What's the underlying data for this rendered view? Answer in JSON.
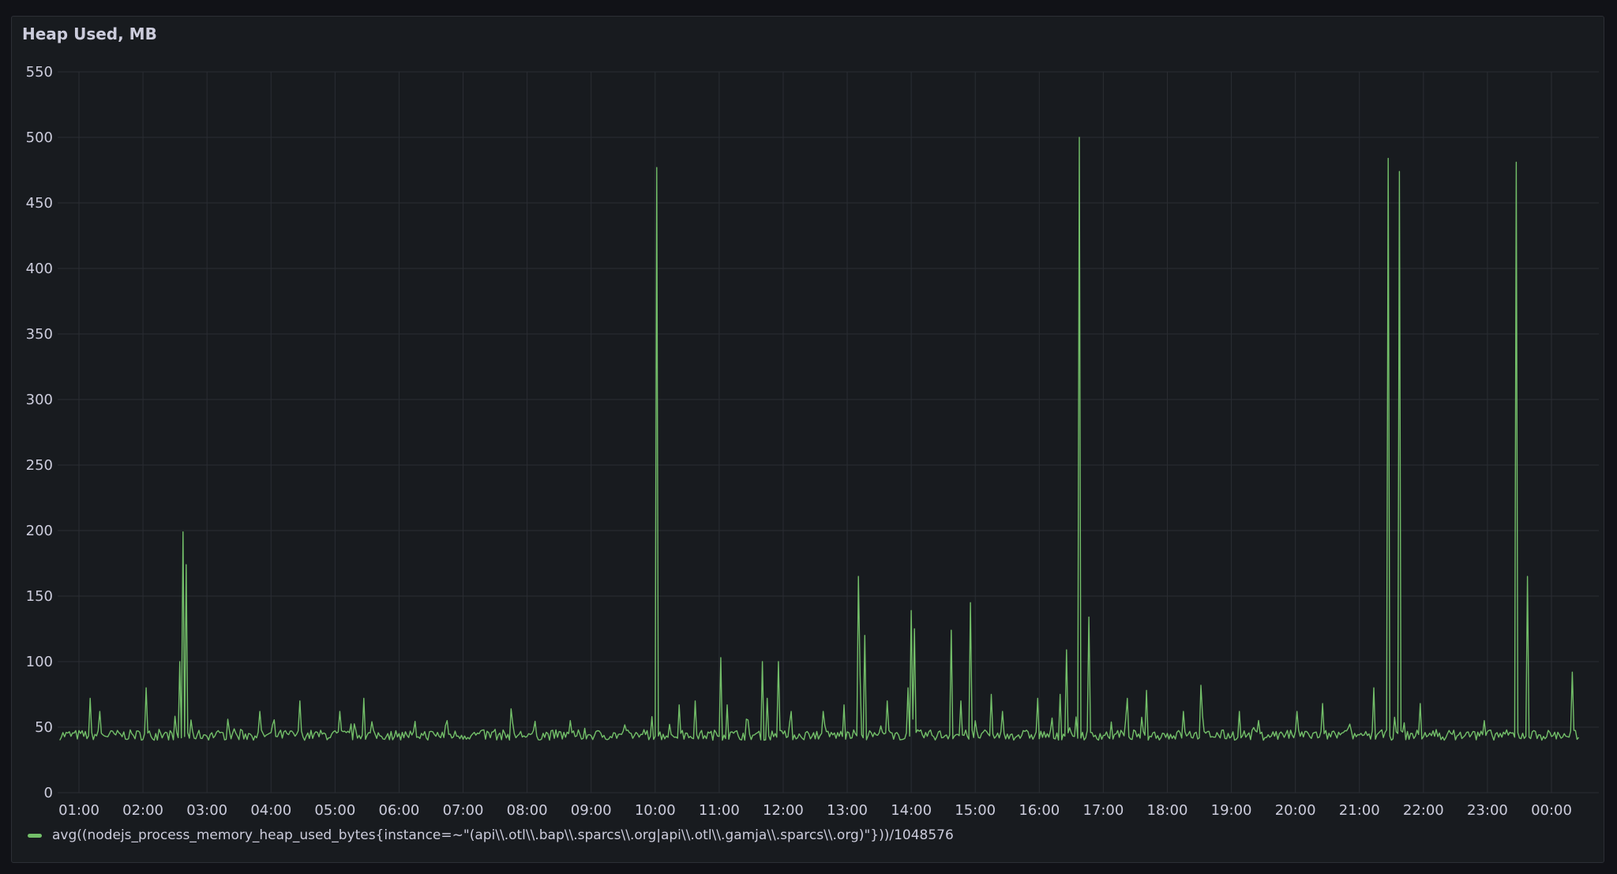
{
  "panel": {
    "title": "Heap Used, MB"
  },
  "legend": {
    "label": "avg((nodejs_process_memory_heap_used_bytes{instance=~\"(api\\\\.otl\\\\.bap\\\\.sparcs\\\\.org|api\\\\.otl\\\\.gamja\\\\.sparcs\\\\.org)\"}))/1048576",
    "color": "#73bf69"
  },
  "chart_data": {
    "type": "line",
    "title": "Heap Used, MB",
    "xlabel": "",
    "ylabel": "",
    "ylim": [
      0,
      550
    ],
    "xlim": [
      "00:40",
      "00:40 (+1d)"
    ],
    "grid": true,
    "legend_position": "bottom-left",
    "y_ticks": [
      0,
      50,
      100,
      150,
      200,
      250,
      300,
      350,
      400,
      450,
      500,
      550
    ],
    "x_ticks": [
      "01:00",
      "02:00",
      "03:00",
      "04:00",
      "05:00",
      "06:00",
      "07:00",
      "08:00",
      "09:00",
      "10:00",
      "11:00",
      "12:00",
      "13:00",
      "14:00",
      "15:00",
      "16:00",
      "17:00",
      "18:00",
      "19:00",
      "20:00",
      "21:00",
      "22:00",
      "23:00",
      "00:00"
    ],
    "baseline_mb": 44,
    "series": [
      {
        "name": "avg((nodejs_process_memory_heap_used_bytes{instance=~\"(api\\\\.otl\\\\.bap\\\\.sparcs\\\\.org|api\\\\.otl\\\\.gamja\\\\.sparcs\\\\.org)\"}))/1048576",
        "color": "#73bf69",
        "spikes": [
          {
            "time": "01:10",
            "value": 72
          },
          {
            "time": "01:20",
            "value": 62
          },
          {
            "time": "02:03",
            "value": 80
          },
          {
            "time": "02:35",
            "value": 100
          },
          {
            "time": "02:37",
            "value": 199
          },
          {
            "time": "02:40",
            "value": 174
          },
          {
            "time": "03:20",
            "value": 56
          },
          {
            "time": "03:50",
            "value": 62
          },
          {
            "time": "04:27",
            "value": 70
          },
          {
            "time": "05:05",
            "value": 62
          },
          {
            "time": "05:27",
            "value": 72
          },
          {
            "time": "06:45",
            "value": 55
          },
          {
            "time": "07:45",
            "value": 64
          },
          {
            "time": "08:40",
            "value": 55
          },
          {
            "time": "09:57",
            "value": 58
          },
          {
            "time": "10:02",
            "value": 477
          },
          {
            "time": "10:22",
            "value": 67
          },
          {
            "time": "10:37",
            "value": 70
          },
          {
            "time": "11:02",
            "value": 103
          },
          {
            "time": "11:08",
            "value": 67
          },
          {
            "time": "11:40",
            "value": 100
          },
          {
            "time": "11:45",
            "value": 72
          },
          {
            "time": "11:55",
            "value": 100
          },
          {
            "time": "12:07",
            "value": 62
          },
          {
            "time": "12:37",
            "value": 62
          },
          {
            "time": "12:57",
            "value": 67
          },
          {
            "time": "13:10",
            "value": 165
          },
          {
            "time": "13:12",
            "value": 90
          },
          {
            "time": "13:17",
            "value": 120
          },
          {
            "time": "13:37",
            "value": 70
          },
          {
            "time": "13:57",
            "value": 80
          },
          {
            "time": "14:00",
            "value": 139
          },
          {
            "time": "14:03",
            "value": 125
          },
          {
            "time": "14:37",
            "value": 124
          },
          {
            "time": "14:47",
            "value": 70
          },
          {
            "time": "14:55",
            "value": 145
          },
          {
            "time": "15:15",
            "value": 75
          },
          {
            "time": "15:25",
            "value": 62
          },
          {
            "time": "15:58",
            "value": 72
          },
          {
            "time": "16:20",
            "value": 75
          },
          {
            "time": "16:25",
            "value": 109
          },
          {
            "time": "16:37",
            "value": 500
          },
          {
            "time": "16:47",
            "value": 134
          },
          {
            "time": "17:22",
            "value": 72
          },
          {
            "time": "17:40",
            "value": 78
          },
          {
            "time": "18:15",
            "value": 62
          },
          {
            "time": "18:32",
            "value": 82
          },
          {
            "time": "19:07",
            "value": 62
          },
          {
            "time": "20:02",
            "value": 62
          },
          {
            "time": "20:25",
            "value": 68
          },
          {
            "time": "21:13",
            "value": 80
          },
          {
            "time": "21:27",
            "value": 484
          },
          {
            "time": "21:37",
            "value": 474
          },
          {
            "time": "21:57",
            "value": 68
          },
          {
            "time": "22:57",
            "value": 55
          },
          {
            "time": "23:27",
            "value": 481
          },
          {
            "time": "23:37",
            "value": 165
          },
          {
            "time": "00:20",
            "value": 92
          },
          {
            "time": "00:35",
            "value": 55
          }
        ]
      }
    ]
  }
}
